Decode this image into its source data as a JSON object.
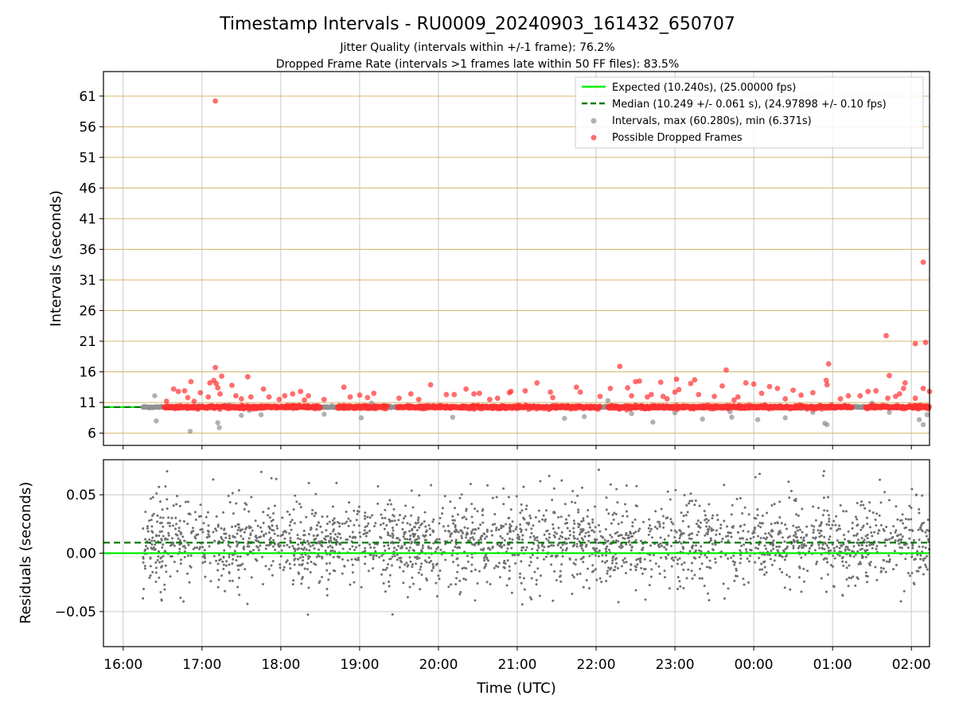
{
  "figure": {
    "title": "Timestamp Intervals - RU0009_20240903_161432_650707",
    "subtitle_1": "Jitter Quality (intervals within +/-1 frame): 76.2%",
    "subtitle_2": "Dropped Frame Rate (intervals >1 frames late within 50 FF files): 83.5%"
  },
  "colors": {
    "expected": "#00ee00",
    "median": "#007a00",
    "intervals": "#909090",
    "dropped": "#ff3030",
    "hgrid": "#d4b86a",
    "vgrid": "#c8c8c8",
    "residuals": "#707070"
  },
  "chart_data": [
    {
      "type": "scatter",
      "ylabel": "Intervals (seconds)",
      "xlabel": "",
      "x_unit": "hours since 16:00 UTC on 2024-09-03",
      "xlim": [
        -0.25,
        10.23
      ],
      "ylim": [
        4,
        65
      ],
      "yticks": [
        6,
        11,
        16,
        21,
        26,
        31,
        36,
        41,
        46,
        51,
        56,
        61
      ],
      "grid": true,
      "legend_position": "top-right",
      "legend": [
        "Expected (10.240s), (25.00000 fps)",
        "Median (10.249 +/- 0.061 s), (24.97898 +/- 0.10 fps)",
        "Intervals, max (60.280s), min (6.371s)",
        "Possible Dropped Frames"
      ],
      "expected_value": 10.24,
      "median_value": 10.249,
      "data_start_hour": 0.25,
      "data_end_hour": 10.23,
      "dropped_band_segments": [
        [
          0.52,
          2.5
        ],
        [
          2.72,
          3.35
        ],
        [
          3.48,
          6.05
        ],
        [
          6.15,
          9.25
        ],
        [
          9.42,
          10.23
        ]
      ],
      "series": [
        {
          "name": "Intervals, max (60.280s), min (6.371s)",
          "points": [
            [
              0.4,
              12.1
            ],
            [
              0.42,
              8.0
            ],
            [
              0.85,
              6.3
            ],
            [
              0.96,
              10.5
            ],
            [
              1.2,
              7.7
            ],
            [
              1.22,
              6.9
            ],
            [
              1.5,
              8.9
            ],
            [
              1.6,
              9.7
            ],
            [
              1.75,
              9.0
            ],
            [
              1.35,
              10.6
            ],
            [
              2.55,
              9.1
            ],
            [
              2.65,
              10.5
            ],
            [
              3.02,
              8.5
            ],
            [
              3.15,
              10.9
            ],
            [
              3.38,
              10.3
            ],
            [
              4.18,
              8.6
            ],
            [
              4.6,
              10.4
            ],
            [
              5.6,
              8.4
            ],
            [
              5.85,
              8.7
            ],
            [
              6.15,
              11.3
            ],
            [
              6.45,
              9.2
            ],
            [
              6.72,
              7.8
            ],
            [
              7.0,
              9.3
            ],
            [
              7.35,
              8.3
            ],
            [
              7.7,
              9.5
            ],
            [
              7.72,
              8.6
            ],
            [
              8.05,
              8.2
            ],
            [
              8.4,
              8.5
            ],
            [
              8.75,
              9.4
            ],
            [
              8.9,
              7.6
            ],
            [
              8.93,
              7.4
            ],
            [
              9.5,
              10.9
            ],
            [
              9.72,
              9.4
            ],
            [
              10.1,
              8.2
            ],
            [
              10.15,
              7.4
            ],
            [
              10.2,
              9.0
            ]
          ]
        },
        {
          "name": "Possible Dropped Frames",
          "points": [
            [
              0.55,
              11.2
            ],
            [
              0.64,
              13.2
            ],
            [
              0.7,
              12.8
            ],
            [
              0.78,
              12.9
            ],
            [
              0.82,
              11.8
            ],
            [
              0.86,
              14.4
            ],
            [
              0.9,
              11.2
            ],
            [
              0.98,
              12.6
            ],
            [
              1.08,
              11.9
            ],
            [
              1.1,
              14.2
            ],
            [
              1.15,
              14.6
            ],
            [
              1.18,
              14.1
            ],
            [
              1.2,
              13.4
            ],
            [
              1.25,
              15.3
            ],
            [
              1.17,
              60.2
            ],
            [
              1.17,
              16.7
            ],
            [
              1.23,
              12.4
            ],
            [
              1.38,
              13.8
            ],
            [
              1.43,
              12.1
            ],
            [
              1.5,
              11.6
            ],
            [
              1.58,
              15.2
            ],
            [
              1.62,
              11.9
            ],
            [
              1.78,
              13.2
            ],
            [
              1.85,
              11.9
            ],
            [
              1.98,
              11.5
            ],
            [
              2.05,
              12.1
            ],
            [
              2.15,
              12.4
            ],
            [
              2.25,
              12.8
            ],
            [
              2.3,
              11.4
            ],
            [
              2.35,
              12.1
            ],
            [
              2.55,
              11.5
            ],
            [
              2.8,
              13.5
            ],
            [
              2.88,
              11.9
            ],
            [
              3.0,
              12.2
            ],
            [
              3.1,
              11.8
            ],
            [
              3.18,
              12.5
            ],
            [
              3.5,
              11.7
            ],
            [
              3.65,
              12.4
            ],
            [
              3.75,
              11.5
            ],
            [
              3.9,
              13.9
            ],
            [
              4.1,
              12.3
            ],
            [
              4.2,
              12.3
            ],
            [
              4.35,
              13.2
            ],
            [
              4.45,
              12.4
            ],
            [
              4.52,
              12.5
            ],
            [
              4.65,
              11.5
            ],
            [
              4.75,
              11.7
            ],
            [
              4.9,
              12.6
            ],
            [
              4.92,
              12.8
            ],
            [
              5.1,
              12.9
            ],
            [
              5.25,
              14.2
            ],
            [
              5.42,
              12.7
            ],
            [
              5.45,
              11.8
            ],
            [
              5.75,
              13.5
            ],
            [
              5.8,
              12.7
            ],
            [
              6.05,
              12.0
            ],
            [
              6.18,
              13.3
            ],
            [
              6.3,
              16.9
            ],
            [
              6.4,
              13.4
            ],
            [
              6.45,
              12.1
            ],
            [
              6.5,
              14.4
            ],
            [
              6.55,
              14.5
            ],
            [
              6.65,
              11.9
            ],
            [
              6.7,
              12.3
            ],
            [
              6.82,
              14.3
            ],
            [
              6.85,
              12.0
            ],
            [
              6.9,
              11.6
            ],
            [
              7.0,
              12.7
            ],
            [
              7.02,
              14.8
            ],
            [
              7.05,
              13.1
            ],
            [
              7.2,
              14.1
            ],
            [
              7.25,
              14.7
            ],
            [
              7.3,
              12.3
            ],
            [
              7.5,
              12.0
            ],
            [
              7.6,
              13.7
            ],
            [
              7.65,
              16.3
            ],
            [
              7.75,
              11.4
            ],
            [
              7.8,
              11.9
            ],
            [
              7.9,
              14.2
            ],
            [
              8.0,
              14.0
            ],
            [
              8.1,
              12.5
            ],
            [
              8.2,
              13.6
            ],
            [
              8.3,
              13.3
            ],
            [
              8.4,
              11.6
            ],
            [
              8.5,
              13.0
            ],
            [
              8.6,
              12.2
            ],
            [
              8.75,
              12.6
            ],
            [
              8.92,
              14.6
            ],
            [
              8.93,
              13.9
            ],
            [
              8.95,
              17.3
            ],
            [
              9.1,
              11.6
            ],
            [
              9.2,
              12.1
            ],
            [
              9.35,
              12.1
            ],
            [
              9.45,
              12.8
            ],
            [
              9.55,
              12.9
            ],
            [
              9.7,
              11.7
            ],
            [
              9.68,
              21.9
            ],
            [
              9.72,
              15.4
            ],
            [
              9.8,
              12.0
            ],
            [
              9.85,
              12.4
            ],
            [
              9.9,
              13.3
            ],
            [
              9.92,
              14.2
            ],
            [
              10.05,
              11.7
            ],
            [
              10.05,
              20.6
            ],
            [
              10.15,
              13.3
            ],
            [
              10.15,
              33.9
            ],
            [
              10.18,
              20.8
            ],
            [
              10.23,
              12.8
            ]
          ]
        }
      ]
    },
    {
      "type": "scatter",
      "ylabel": "Residuals (seconds)",
      "xlabel": "Time (UTC)",
      "xlim": [
        -0.25,
        10.23
      ],
      "ylim": [
        -0.08,
        0.08
      ],
      "yticks": [
        -0.05,
        0.0,
        0.05
      ],
      "yticklabels": [
        "−0.05",
        "0.00",
        "0.05"
      ],
      "xticks": [
        0,
        1,
        2,
        3,
        4,
        5,
        6,
        7,
        8,
        9,
        10
      ],
      "xticklabels": [
        "16:00",
        "17:00",
        "18:00",
        "19:00",
        "20:00",
        "21:00",
        "22:00",
        "23:00",
        "00:00",
        "01:00",
        "02:00"
      ],
      "grid": true,
      "expected_value": 0.0,
      "median_value": 0.009,
      "residual_spread_sd": 0.02,
      "residual_point_count": 2400
    }
  ]
}
